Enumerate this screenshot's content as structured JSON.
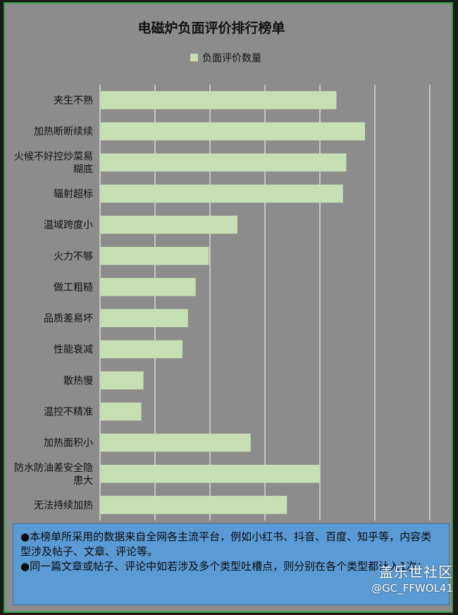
{
  "chart_data": {
    "type": "bar",
    "orientation": "horizontal",
    "title": "电磁炉负面评价排行榜单",
    "categories": [
      "夹生不熟",
      "加热断断续续",
      "火候不好控炒菜易糊底",
      "辐射超标",
      "温域跨度小",
      "火力不够",
      "做工粗糙",
      "品质差易坏",
      "性能衰减",
      "散热慢",
      "温控不精准",
      "加热面积小",
      "防水防油差安全隐患大",
      "无法持续加热"
    ],
    "category_lines": [
      [
        "夹生不熟"
      ],
      [
        "加热断断续续"
      ],
      [
        "火候不好控炒菜易",
        "糊底"
      ],
      [
        "辐射超标"
      ],
      [
        "温域跨度小"
      ],
      [
        "火力不够"
      ],
      [
        "做工粗糙"
      ],
      [
        "品质差易坏"
      ],
      [
        "性能衰减"
      ],
      [
        "散热慢"
      ],
      [
        "温控不精准"
      ],
      [
        "加热面积小"
      ],
      [
        "防水防油差安全隐",
        "患大"
      ],
      [
        "无法持续加热"
      ]
    ],
    "series": [
      {
        "name": "负面评价数量",
        "values": [
          430,
          482,
          448,
          442,
          250,
          198,
          174,
          160,
          150,
          79,
          75,
          274,
          400,
          340
        ],
        "color": "#c6e0b4"
      }
    ],
    "xlim": [
      0,
      600
    ],
    "x_gridlines": [
      0,
      100,
      200,
      300,
      400,
      500,
      600
    ],
    "grid": true,
    "legend_position": "top-center",
    "axis_tick_labels_visible": false
  },
  "notes": [
    "●本榜单所采用的数据来自全网各主流平台，例如小红书、抖音、百度、知乎等，内容类型涉及帖子、文章、评论等。",
    "●同一篇文章或帖子、评论中如若涉及多个类型吐槽点，则分别在各个类型都计入1次；"
  ],
  "watermark": {
    "line1": "盖乐世社区",
    "line2": "@GC_FFWOL41"
  },
  "colors": {
    "background": "#8c8c8c",
    "bar": "#c6e0b4",
    "grid": "#ffffff",
    "note_box": "#5b9bd5",
    "frame_border": "#2e9a3c"
  }
}
